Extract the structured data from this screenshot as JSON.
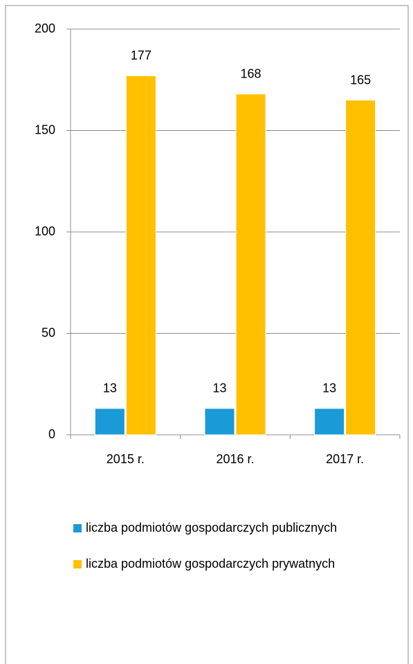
{
  "chart_data": {
    "type": "bar",
    "categories": [
      "2015 r.",
      "2016 r.",
      "2017 r."
    ],
    "series": [
      {
        "name": "liczba podmiotów gospodarczych publicznych",
        "color": "#1a9ad6",
        "values": [
          13,
          13,
          13
        ]
      },
      {
        "name": "liczba podmiotów gospodarczych prywatnych",
        "color": "#ffc000",
        "values": [
          177,
          168,
          165
        ]
      }
    ],
    "ylim": [
      0,
      200
    ],
    "yticks": [
      0,
      50,
      100,
      150,
      200
    ],
    "grid": true,
    "legend": "bottom"
  }
}
